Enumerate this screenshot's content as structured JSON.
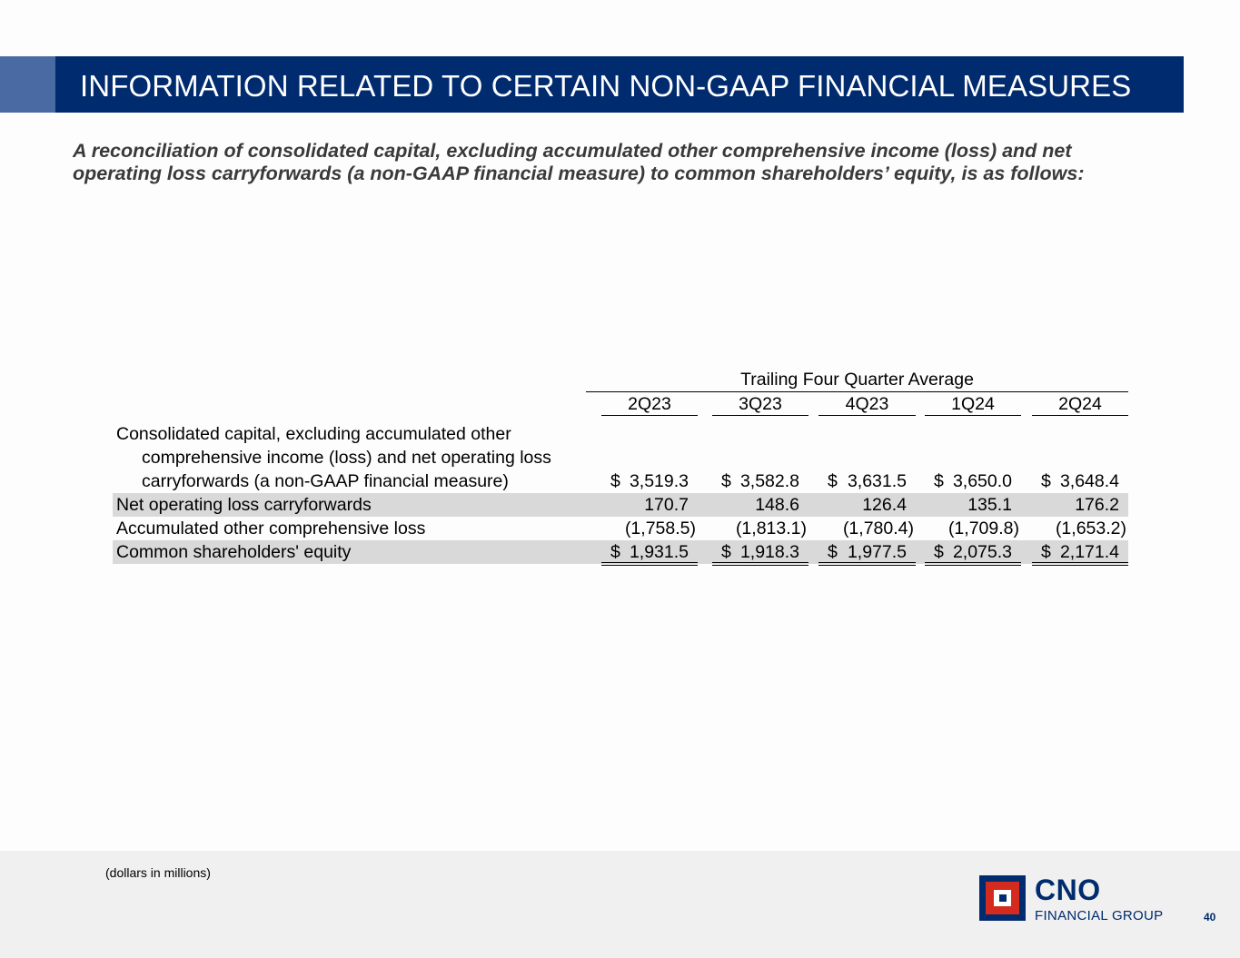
{
  "slide": {
    "title": "INFORMATION RELATED TO CERTAIN NON-GAAP FINANCIAL MEASURES",
    "subtitle_line1": "A reconciliation of consolidated capital, excluding accumulated other comprehensive income (loss) and net",
    "subtitle_line2": "operating loss carryforwards (a non-GAAP financial measure) to common shareholders’ equity, is as follows:"
  },
  "table": {
    "group_header": "Trailing Four Quarter Average",
    "columns": [
      "2Q23",
      "3Q23",
      "4Q23",
      "1Q24",
      "2Q24"
    ],
    "rows": [
      {
        "label_lines": [
          "Consolidated capital, excluding accumulated other",
          "comprehensive income (loss) and net operating loss",
          "carryforwards (a non-GAAP financial measure)"
        ],
        "values": [
          "3,519.3",
          "3,582.8",
          "3,631.5",
          "3,650.0",
          "3,648.4"
        ],
        "currency": "$"
      },
      {
        "label": "Net operating loss carryforwards",
        "values": [
          "170.7",
          "148.6",
          "126.4",
          "135.1",
          "176.2"
        ]
      },
      {
        "label": "Accumulated other comprehensive loss",
        "values": [
          "(1,758.5)",
          "(1,813.1)",
          "(1,780.4)",
          "(1,709.8)",
          "(1,653.2)"
        ]
      },
      {
        "label": "Common shareholders' equity",
        "values": [
          "1,931.5",
          "1,918.3",
          "1,977.5",
          "2,075.3",
          "2,171.4"
        ],
        "currency": "$"
      }
    ]
  },
  "footer": {
    "footnote": "(dollars in millions)",
    "logo_name": "CNO",
    "logo_subtitle": "FINANCIAL GROUP",
    "page_number": "40"
  },
  "colors": {
    "navy": "#002b6e",
    "accent_blue": "#4a6aa3",
    "logo_red": "#d52b1e",
    "row_shade": "#d9d9d9"
  }
}
